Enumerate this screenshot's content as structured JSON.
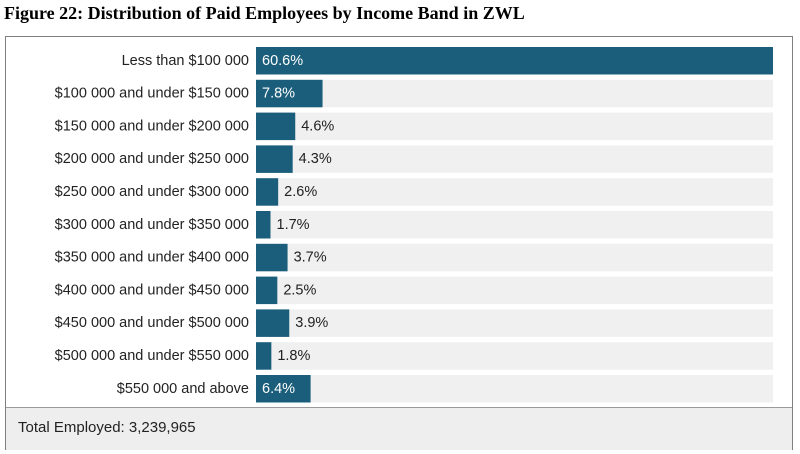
{
  "title": "Figure 22: Distribution of Paid Employees by Income Band in ZWL",
  "footer": {
    "total_label": "Total Employed: 3,239,965"
  },
  "colors": {
    "bar": "#1b5e7b",
    "track": "#f0f0f0",
    "label_inside": "#ffffff",
    "label_outside": "#222222"
  },
  "chart_data": {
    "type": "bar",
    "orientation": "horizontal",
    "title": "Figure 22: Distribution of Paid Employees by Income Band in ZWL",
    "xlabel": "",
    "ylabel": "",
    "xlim": [
      0,
      60.6
    ],
    "grid": false,
    "categories": [
      "Less than $100 000",
      "$100 000 and under $150 000",
      "$150 000 and under $200 000",
      "$200 000 and under $250 000",
      "$250 000 and under $300 000",
      "$300 000 and under $350 000",
      "$350 000 and under $400 000",
      "$400 000 and under $450 000",
      "$450 000 and under $500 000",
      "$500 000 and under $550 000",
      "$550 000 and above"
    ],
    "values": [
      60.6,
      7.8,
      4.6,
      4.3,
      2.6,
      1.7,
      3.7,
      2.5,
      3.9,
      1.8,
      6.4
    ],
    "value_labels": [
      "60.6%",
      "7.8%",
      "4.6%",
      "4.3%",
      "2.6%",
      "1.7%",
      "3.7%",
      "2.5%",
      "3.9%",
      "1.8%",
      "6.4%"
    ],
    "label_inside": [
      true,
      true,
      false,
      false,
      false,
      false,
      false,
      false,
      false,
      false,
      true
    ]
  }
}
